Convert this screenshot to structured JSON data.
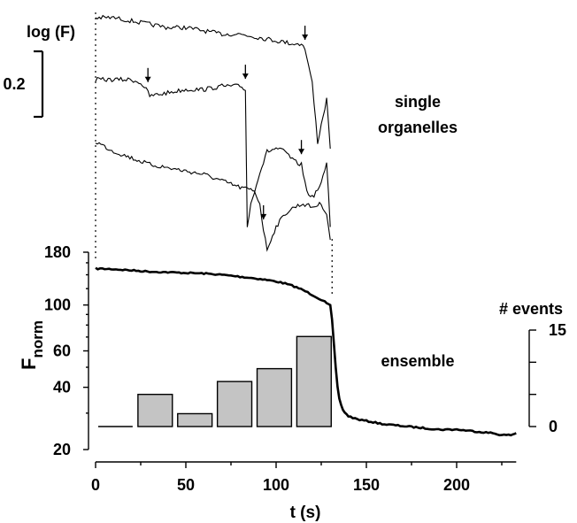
{
  "chart_data": [
    {
      "type": "line",
      "title": "",
      "ylabel": "log (F)",
      "annotation": "single organelles",
      "scale_bar": {
        "label": "0.2",
        "value": 0.2
      },
      "series": [
        {
          "x": [
            0,
            10,
            20,
            30,
            40,
            50,
            60,
            70,
            80,
            90,
            100,
            110,
            115,
            117,
            120,
            123,
            126,
            128,
            130
          ],
          "y": [
            0.0,
            0.0,
            -0.01,
            -0.02,
            -0.03,
            -0.03,
            -0.04,
            -0.05,
            -0.05,
            -0.06,
            -0.07,
            -0.08,
            -0.08,
            -0.12,
            -0.2,
            -0.38,
            -0.3,
            -0.25,
            -0.4
          ],
          "event_t": 116
        },
        {
          "x": [
            0,
            10,
            20,
            25,
            28,
            30,
            40,
            50,
            60,
            70,
            80,
            83,
            84,
            86,
            90,
            95,
            100,
            105,
            110,
            114,
            117,
            120,
            125,
            128,
            130
          ],
          "y": [
            0.0,
            0.0,
            0.0,
            -0.01,
            -0.03,
            -0.05,
            -0.04,
            -0.03,
            -0.03,
            -0.02,
            -0.02,
            -0.03,
            -0.45,
            -0.38,
            -0.3,
            -0.22,
            -0.21,
            -0.22,
            -0.25,
            -0.26,
            -0.34,
            -0.36,
            -0.32,
            -0.25,
            -0.45
          ],
          "event_t": [
            29,
            83,
            114
          ]
        },
        {
          "x": [
            0,
            10,
            20,
            30,
            40,
            50,
            60,
            70,
            80,
            88,
            91,
            93,
            95,
            97,
            100,
            105,
            110,
            115,
            120,
            125,
            128,
            130
          ],
          "y": [
            0.0,
            -0.03,
            -0.05,
            -0.07,
            -0.08,
            -0.09,
            -0.1,
            -0.12,
            -0.14,
            -0.15,
            -0.19,
            -0.27,
            -0.33,
            -0.3,
            -0.26,
            -0.22,
            -0.2,
            -0.19,
            -0.2,
            -0.19,
            -0.22,
            -0.3
          ],
          "event_t": 93
        }
      ]
    },
    {
      "type": "line",
      "title": "",
      "xlabel": "t (s)",
      "ylabel": "F",
      "ylabel_sub": "norm",
      "y_scale": "log",
      "xlim": [
        0,
        233
      ],
      "ylim": [
        20,
        180
      ],
      "x_ticks": [
        0,
        50,
        100,
        150,
        200
      ],
      "y_ticks": [
        20,
        40,
        60,
        100,
        180
      ],
      "annotation": "ensemble",
      "series": [
        {
          "x": [
            0,
            10,
            20,
            30,
            40,
            50,
            60,
            70,
            80,
            90,
            100,
            105,
            110,
            115,
            120,
            125,
            128,
            130,
            131,
            132,
            133,
            134,
            135,
            137,
            140,
            145,
            150,
            160,
            170,
            180,
            190,
            200,
            210,
            220,
            225,
            230,
            233
          ],
          "y": [
            150,
            149,
            147,
            145,
            144,
            143,
            142,
            140,
            137,
            134,
            130,
            127,
            123,
            118,
            112,
            106,
            102,
            100,
            85,
            65,
            50,
            40,
            35,
            31,
            29,
            28,
            27.5,
            26.5,
            26,
            25.5,
            25,
            25,
            24.5,
            24,
            23.5,
            23.5,
            24
          ]
        }
      ],
      "bars": {
        "label": "# events",
        "ylim": [
          0,
          15
        ],
        "y_ticks": [
          0,
          15
        ],
        "categories": [
          "0-22",
          "22-44",
          "44-66",
          "66-88",
          "88-110",
          "110-132"
        ],
        "values": [
          0,
          5,
          2,
          7,
          9,
          14
        ]
      }
    }
  ]
}
